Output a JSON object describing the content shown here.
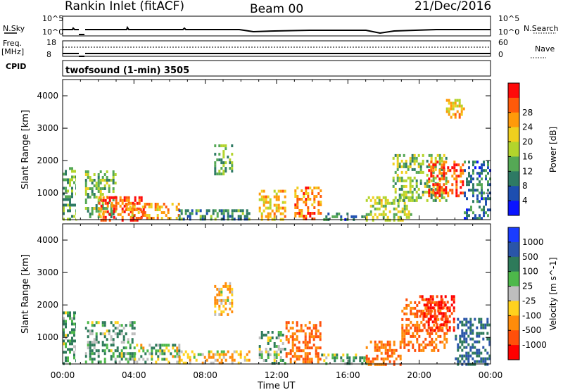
{
  "header": {
    "site": "Rankin Inlet (fitACF)",
    "beam": "Beam 00",
    "date": "21/Dec/2016"
  },
  "status_panel": {
    "nsky_label": "N.Sky",
    "nsky_tick_top": "10^5",
    "nsky_tick_bottom": "10^0",
    "nsearch_label": "N.Search",
    "nsearch_tick_top": "10^5",
    "nsearch_tick_bottom": "10^0",
    "freq_label": "Freq.",
    "freq_unit": "[MHz]",
    "freq_tick_top": "18",
    "freq_tick_bottom": "8",
    "nave_label": "Nave",
    "nave_tick_top": "60",
    "nave_tick_bottom": "0",
    "cpid_label": "CPID",
    "cpid_text": "twofsound (1-min) 3505"
  },
  "chart_data": [
    {
      "type": "heatmap",
      "title": "",
      "xlabel": "Time UT",
      "ylabel": "Slant Range [km]",
      "x_ticks": [
        "00:00",
        "04:00",
        "08:00",
        "12:00",
        "16:00",
        "20:00",
        "00:00"
      ],
      "x_range_hours": [
        0,
        24
      ],
      "y_ticks": [
        1000,
        2000,
        3000,
        4000
      ],
      "y_range": [
        180,
        4500
      ],
      "colorbar": {
        "label": "Power [dB]",
        "ticks": [
          "4",
          "8",
          "12",
          "16",
          "20",
          "24",
          "28"
        ],
        "colors": [
          "#0a14ff",
          "#1d4eb0",
          "#2e7a64",
          "#55a855",
          "#b3d42c",
          "#f0cf1e",
          "#ff9a0a",
          "#ff5a0a",
          "#ff0a0a"
        ]
      },
      "data_gaps_hours": [
        [
          0.75,
          1.25
        ]
      ],
      "regions": [
        {
          "t": [
            0.0,
            0.75
          ],
          "r": [
            200,
            1800
          ],
          "value": 12
        },
        {
          "t": [
            1.25,
            3.0
          ],
          "r": [
            300,
            1700
          ],
          "value": 14
        },
        {
          "t": [
            2.0,
            4.5
          ],
          "r": [
            200,
            900
          ],
          "value": 26
        },
        {
          "t": [
            3.5,
            6.5
          ],
          "r": [
            200,
            700
          ],
          "value": 22
        },
        {
          "t": [
            6.5,
            10.5
          ],
          "r": [
            200,
            500
          ],
          "value": 10
        },
        {
          "t": [
            8.5,
            9.5
          ],
          "r": [
            1600,
            2500
          ],
          "value": 12
        },
        {
          "t": [
            11.0,
            12.5
          ],
          "r": [
            200,
            1100
          ],
          "value": 20
        },
        {
          "t": [
            13.0,
            14.5
          ],
          "r": [
            200,
            1200
          ],
          "value": 24
        },
        {
          "t": [
            14.5,
            17.0
          ],
          "r": [
            200,
            400
          ],
          "value": 8
        },
        {
          "t": [
            17.0,
            19.5
          ],
          "r": [
            200,
            900
          ],
          "value": 16
        },
        {
          "t": [
            18.5,
            21.5
          ],
          "r": [
            800,
            2200
          ],
          "value": 14
        },
        {
          "t": [
            20.5,
            22.5
          ],
          "r": [
            900,
            2000
          ],
          "value": 26
        },
        {
          "t": [
            22.5,
            24.0
          ],
          "r": [
            200,
            2000
          ],
          "value": 8
        },
        {
          "t": [
            21.5,
            22.5
          ],
          "r": [
            3300,
            3900
          ],
          "value": 20
        }
      ]
    },
    {
      "type": "heatmap",
      "title": "",
      "xlabel": "Time UT",
      "ylabel": "Slant Range [km]",
      "x_ticks": [
        "00:00",
        "04:00",
        "08:00",
        "12:00",
        "16:00",
        "20:00",
        "00:00"
      ],
      "x_range_hours": [
        0,
        24
      ],
      "y_ticks": [
        1000,
        2000,
        3000,
        4000
      ],
      "y_range": [
        180,
        4500
      ],
      "colorbar": {
        "label": "Velocity [m s^-1]",
        "ticks": [
          "1000",
          "500",
          "100",
          "25",
          "-25",
          "-100",
          "-500",
          "-1000"
        ],
        "colors": [
          "#1a3cff",
          "#2a55a8",
          "#2e7a5a",
          "#4db84a",
          "#bebebe",
          "#ffd21e",
          "#ff8c0a",
          "#ff4f0a",
          "#ff0000"
        ]
      },
      "data_gaps_hours": [
        [
          0.75,
          1.25
        ]
      ],
      "regions": [
        {
          "t": [
            0.0,
            0.75
          ],
          "r": [
            200,
            1800
          ],
          "value": 100
        },
        {
          "t": [
            1.25,
            4.0
          ],
          "r": [
            200,
            1500
          ],
          "value": 100
        },
        {
          "t": [
            4.0,
            6.5
          ],
          "r": [
            200,
            800
          ],
          "value": 25
        },
        {
          "t": [
            6.5,
            10.5
          ],
          "r": [
            200,
            600
          ],
          "value": -100
        },
        {
          "t": [
            8.5,
            9.5
          ],
          "r": [
            1700,
            2700
          ],
          "value": -100
        },
        {
          "t": [
            11.0,
            12.5
          ],
          "r": [
            200,
            1200
          ],
          "value": 100
        },
        {
          "t": [
            12.5,
            14.5
          ],
          "r": [
            200,
            1500
          ],
          "value": -500
        },
        {
          "t": [
            14.5,
            17.0
          ],
          "r": [
            200,
            500
          ],
          "value": 100
        },
        {
          "t": [
            17.0,
            19.0
          ],
          "r": [
            200,
            900
          ],
          "value": -500
        },
        {
          "t": [
            19.0,
            21.5
          ],
          "r": [
            600,
            2200
          ],
          "value": -500
        },
        {
          "t": [
            20.0,
            22.0
          ],
          "r": [
            1200,
            2300
          ],
          "value": -1000
        },
        {
          "t": [
            22.0,
            24.0
          ],
          "r": [
            200,
            1600
          ],
          "value": 500
        }
      ]
    }
  ]
}
